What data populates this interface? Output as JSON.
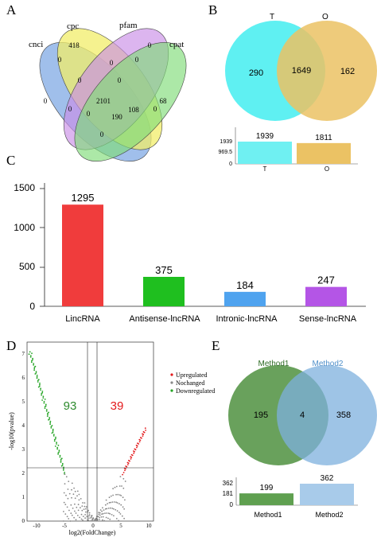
{
  "panels": {
    "a": "A",
    "b": "B",
    "c": "C",
    "d": "D",
    "e": "E"
  },
  "chart_data": [
    {
      "type": "venn",
      "panel": "A",
      "sets": [
        "cnci",
        "cpc",
        "pfam",
        "cpat"
      ],
      "colors": [
        "#8fb4e8",
        "#f2ee6a",
        "#c98ee6",
        "#7fdc78"
      ],
      "regions": [
        {
          "sets": [
            "cnci"
          ],
          "value": 0
        },
        {
          "sets": [
            "cpc"
          ],
          "value": 418
        },
        {
          "sets": [
            "pfam"
          ],
          "value": 0
        },
        {
          "sets": [
            "cpat"
          ],
          "value": 68
        },
        {
          "sets": [
            "cnci",
            "cpc"
          ],
          "value": 0
        },
        {
          "sets": [
            "cpc",
            "pfam"
          ],
          "value": 0
        },
        {
          "sets": [
            "pfam",
            "cpat"
          ],
          "value": 0
        },
        {
          "sets": [
            "cnci",
            "pfam"
          ],
          "value": 0
        },
        {
          "sets": [
            "cpc",
            "cpat"
          ],
          "value": 0
        },
        {
          "sets": [
            "cnci",
            "cpc",
            "pfam"
          ],
          "value": 0
        },
        {
          "sets": [
            "cpc",
            "pfam",
            "cpat"
          ],
          "value": 0
        },
        {
          "sets": [
            "cnci",
            "cpc",
            "pfam",
            "cpat"
          ],
          "value": 2101
        },
        {
          "sets": [
            "cnci",
            "pfam",
            "cpat"
          ],
          "value": 0
        },
        {
          "sets": [
            "cnci",
            "cpc",
            "cpat"
          ],
          "value": 108
        },
        {
          "sets": [
            "cnci",
            "cpat"
          ],
          "value": 190
        },
        {
          "sets": [
            "cnci",
            "cpat",
            "bottom"
          ],
          "value": 0
        }
      ]
    },
    {
      "type": "venn",
      "panel": "B",
      "sets": [
        "T",
        "O"
      ],
      "colors": [
        "#5ff0f2",
        "#ebc264"
      ],
      "only_a": 290,
      "both": 1649,
      "only_b": 162
    },
    {
      "type": "bar",
      "panel": "B-inset",
      "categories": [
        "T",
        "O"
      ],
      "values": [
        1939,
        1811
      ],
      "yticks": [
        "1939",
        "969.5",
        "0"
      ],
      "ylim": [
        0,
        1939
      ],
      "colors": [
        "#6ff0f2",
        "#ebc264"
      ]
    },
    {
      "type": "bar",
      "panel": "C",
      "categories": [
        "LincRNA",
        "Antisense-lncRNA",
        "Intronic-lncRNA",
        "Sense-lncRNA"
      ],
      "values": [
        1295,
        375,
        184,
        247
      ],
      "yticks": [
        0,
        500,
        1000,
        1500
      ],
      "ylim": [
        0,
        1500
      ],
      "colors": [
        "#f03c3c",
        "#1fbf1f",
        "#4fa3ef",
        "#b455e6"
      ]
    },
    {
      "type": "scatter",
      "panel": "D",
      "xlabel": "log2(FoldChange)",
      "ylabel": "-log10(pvalue)",
      "xticks": [
        -10,
        -5,
        0,
        5,
        10
      ],
      "yticks": [
        0,
        1,
        2,
        3,
        4,
        5,
        6,
        7
      ],
      "xlim": [
        -11.5,
        11
      ],
      "ylim": [
        0,
        7.4
      ],
      "legend": [
        "Upregulated",
        "Nochanged",
        "Downregulated"
      ],
      "legend_colors": [
        "#e31a1c",
        "#888888",
        "#22a322"
      ],
      "down_count": "93",
      "up_count": "39",
      "vlines": [
        -1,
        1
      ],
      "hline": 2
    },
    {
      "type": "venn",
      "panel": "E",
      "sets": [
        "Method1",
        "Method2"
      ],
      "colors": [
        "#4f9140",
        "#7db0de"
      ],
      "only_a": 195,
      "both": 4,
      "only_b": 358
    },
    {
      "type": "bar",
      "panel": "E-inset",
      "categories": [
        "Method1",
        "Method2"
      ],
      "values": [
        199,
        362
      ],
      "yticks": [
        "362",
        "181",
        "0"
      ],
      "ylim": [
        0,
        362
      ],
      "colors": [
        "#5fa050",
        "#a8cbea"
      ]
    }
  ]
}
